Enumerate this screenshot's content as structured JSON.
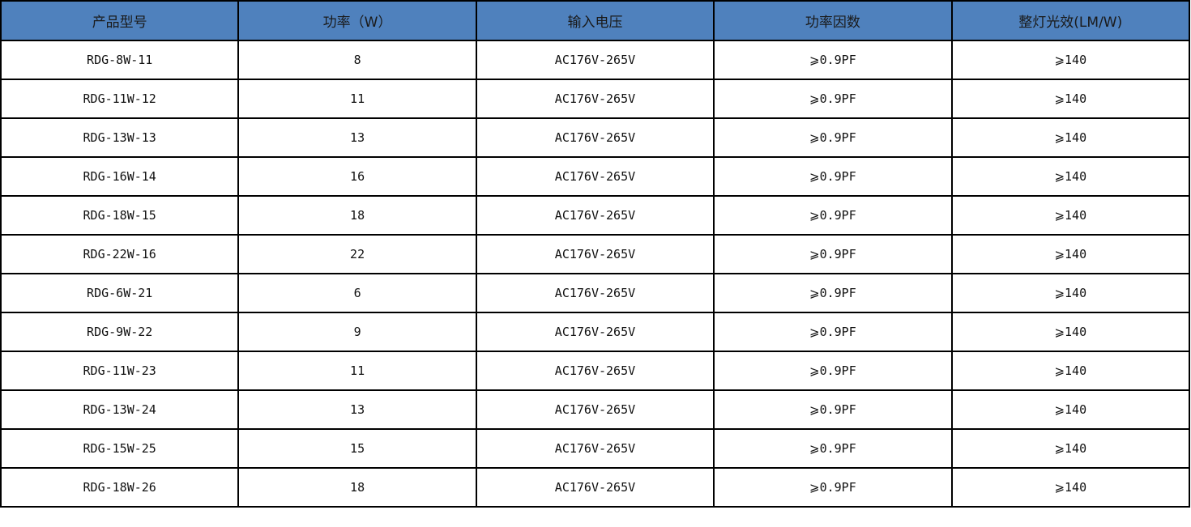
{
  "header": {
    "color": "#4f81bd",
    "columns": [
      "产品型号",
      "功率（W）",
      "输入电压",
      "功率因数",
      "整灯光效(LM/W)"
    ]
  },
  "rows": [
    [
      "RDG-8W-11",
      "8",
      "AC176V-265V",
      "⩾0.9PF",
      "⩾140"
    ],
    [
      "RDG-11W-12",
      "11",
      "AC176V-265V",
      "⩾0.9PF",
      "⩾140"
    ],
    [
      "RDG-13W-13",
      "13",
      "AC176V-265V",
      "⩾0.9PF",
      "⩾140"
    ],
    [
      "RDG-16W-14",
      "16",
      "AC176V-265V",
      "⩾0.9PF",
      "⩾140"
    ],
    [
      "RDG-18W-15",
      "18",
      "AC176V-265V",
      "⩾0.9PF",
      "⩾140"
    ],
    [
      "RDG-22W-16",
      "22",
      "AC176V-265V",
      "⩾0.9PF",
      "⩾140"
    ],
    [
      "RDG-6W-21",
      "6",
      "AC176V-265V",
      "⩾0.9PF",
      "⩾140"
    ],
    [
      "RDG-9W-22",
      "9",
      "AC176V-265V",
      "⩾0.9PF",
      "⩾140"
    ],
    [
      "RDG-11W-23",
      "11",
      "AC176V-265V",
      "⩾0.9PF",
      "⩾140"
    ],
    [
      "RDG-13W-24",
      "13",
      "AC176V-265V",
      "⩾0.9PF",
      "⩾140"
    ],
    [
      "RDG-15W-25",
      "15",
      "AC176V-265V",
      "⩾0.9PF",
      "⩾140"
    ],
    [
      "RDG-18W-26",
      "18",
      "AC176V-265V",
      "⩾0.9PF",
      "⩾140"
    ]
  ]
}
